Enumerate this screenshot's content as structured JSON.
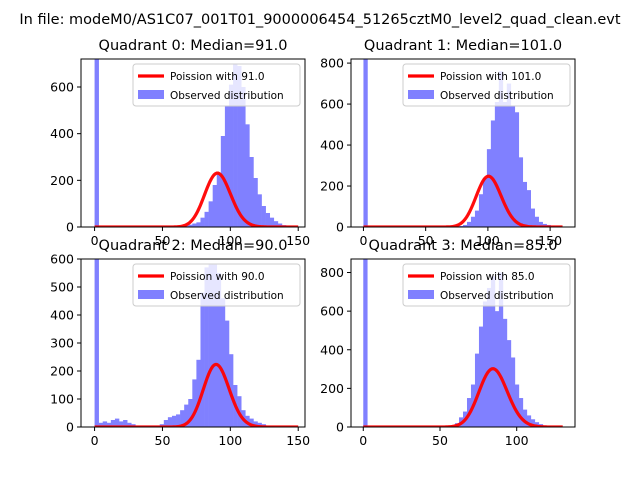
{
  "suptitle": "In file: modeM0/AS1C07_001T01_9000006454_51265cztM0_level2_quad_clean.evt",
  "colors": {
    "hist": "#8080ff",
    "poisson": "#ff0000",
    "axis": "#000000",
    "background": "#ffffff"
  },
  "legend": {
    "poisson_prefix": "Poission with ",
    "observed": "Observed distribution",
    "placement": "upper right"
  },
  "chart_data": [
    {
      "type": "bar",
      "title": "Quadrant 0: Median=91.0",
      "median": 91.0,
      "poisson_label": "Poission with 91.0",
      "xlim": [
        -10,
        155
      ],
      "ylim": [
        0,
        720
      ],
      "xticks": [
        0,
        50,
        100,
        150
      ],
      "yticks": [
        0,
        200,
        400,
        600
      ],
      "bin_start": 0,
      "bin_width": 3,
      "counts": [
        720,
        0,
        0,
        0,
        0,
        0,
        0,
        0,
        0,
        0,
        0,
        0,
        0,
        0,
        0,
        0,
        0,
        0,
        0,
        0,
        0,
        0,
        5,
        10,
        15,
        20,
        40,
        65,
        110,
        180,
        230,
        390,
        520,
        610,
        700,
        690,
        600,
        440,
        300,
        210,
        140,
        90,
        60,
        40,
        25,
        15,
        8,
        5,
        3,
        2
      ],
      "poisson_mean": 91.0,
      "poisson_scale": 3
    },
    {
      "type": "bar",
      "title": "Quadrant 1: Median=101.0",
      "median": 101.0,
      "poisson_label": "Poission with 101.0",
      "xlim": [
        -10,
        170
      ],
      "ylim": [
        0,
        820
      ],
      "xticks": [
        0,
        50,
        100,
        150
      ],
      "yticks": [
        0,
        200,
        400,
        600,
        800
      ],
      "bin_start": 0,
      "bin_width": 3.2,
      "counts": [
        820,
        0,
        0,
        0,
        0,
        0,
        0,
        0,
        0,
        0,
        0,
        0,
        0,
        0,
        0,
        0,
        0,
        0,
        0,
        0,
        0,
        0,
        0,
        2,
        5,
        10,
        25,
        50,
        80,
        160,
        240,
        380,
        520,
        610,
        760,
        610,
        700,
        590,
        560,
        340,
        220,
        180,
        90,
        50,
        25,
        15,
        10,
        5,
        3,
        2
      ],
      "poisson_mean": 101.0,
      "poisson_scale": 3.2
    },
    {
      "type": "bar",
      "title": "Quadrant 2: Median=90.0",
      "median": 90.0,
      "poisson_label": "Poission with 90.0",
      "xlim": [
        -10,
        155
      ],
      "ylim": [
        0,
        600
      ],
      "xticks": [
        0,
        50,
        100,
        150
      ],
      "yticks": [
        0,
        100,
        200,
        300,
        400,
        500,
        600
      ],
      "bin_start": 0,
      "bin_width": 3,
      "counts": [
        600,
        15,
        20,
        15,
        25,
        30,
        20,
        25,
        15,
        10,
        5,
        5,
        5,
        5,
        5,
        5,
        10,
        25,
        35,
        40,
        45,
        60,
        80,
        100,
        170,
        240,
        480,
        570,
        580,
        580,
        550,
        460,
        380,
        260,
        150,
        110,
        60,
        40,
        30,
        20,
        15,
        10,
        5,
        3,
        2,
        1,
        0,
        0,
        0,
        0
      ],
      "poisson_mean": 90.0,
      "poisson_scale": 3
    },
    {
      "type": "bar",
      "title": "Quadrant 3: Median=85.0",
      "median": 85.0,
      "poisson_label": "Poission with 85.0",
      "xlim": [
        -8,
        138
      ],
      "ylim": [
        0,
        870
      ],
      "xticks": [
        0,
        50,
        100
      ],
      "yticks": [
        0,
        200,
        400,
        600,
        800
      ],
      "bin_start": 0,
      "bin_width": 2.6,
      "counts": [
        870,
        0,
        0,
        0,
        0,
        0,
        0,
        0,
        0,
        0,
        0,
        0,
        0,
        0,
        0,
        0,
        0,
        0,
        0,
        0,
        2,
        5,
        10,
        20,
        50,
        80,
        150,
        220,
        380,
        520,
        650,
        720,
        780,
        600,
        800,
        560,
        450,
        360,
        220,
        150,
        90,
        60,
        40,
        25,
        15,
        8,
        5,
        3,
        2,
        1
      ],
      "poisson_mean": 85.0,
      "poisson_scale": 2.6
    }
  ]
}
